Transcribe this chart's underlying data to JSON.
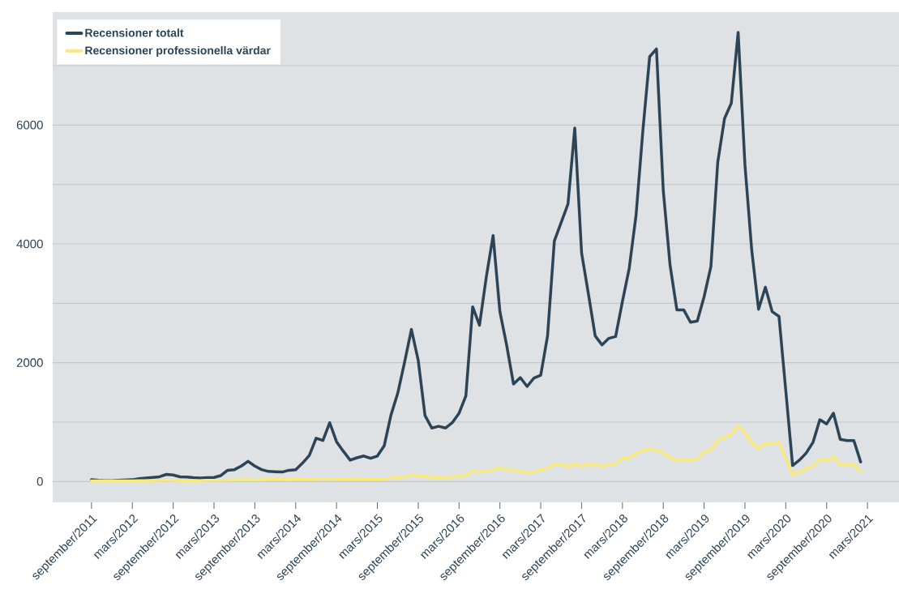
{
  "chart_data": {
    "type": "line",
    "x": [
      "2011-09",
      "2011-10",
      "2011-11",
      "2011-12",
      "2012-01",
      "2012-02",
      "2012-03",
      "2012-04",
      "2012-05",
      "2012-06",
      "2012-07",
      "2012-08",
      "2012-09",
      "2012-10",
      "2012-11",
      "2012-12",
      "2013-01",
      "2013-02",
      "2013-03",
      "2013-04",
      "2013-05",
      "2013-06",
      "2013-07",
      "2013-08",
      "2013-09",
      "2013-10",
      "2013-11",
      "2013-12",
      "2014-01",
      "2014-02",
      "2014-03",
      "2014-04",
      "2014-05",
      "2014-06",
      "2014-07",
      "2014-08",
      "2014-09",
      "2014-10",
      "2014-11",
      "2014-12",
      "2015-01",
      "2015-02",
      "2015-03",
      "2015-04",
      "2015-05",
      "2015-06",
      "2015-07",
      "2015-08",
      "2015-09",
      "2015-10",
      "2015-11",
      "2015-12",
      "2016-01",
      "2016-02",
      "2016-03",
      "2016-04",
      "2016-05",
      "2016-06",
      "2016-07",
      "2016-08",
      "2016-09",
      "2016-10",
      "2016-11",
      "2016-12",
      "2017-01",
      "2017-02",
      "2017-03",
      "2017-04",
      "2017-05",
      "2017-06",
      "2017-07",
      "2017-08",
      "2017-09",
      "2017-10",
      "2017-11",
      "2017-12",
      "2018-01",
      "2018-02",
      "2018-03",
      "2018-04",
      "2018-05",
      "2018-06",
      "2018-07",
      "2018-08",
      "2018-09",
      "2018-10",
      "2018-11",
      "2018-12",
      "2019-01",
      "2019-02",
      "2019-03",
      "2019-04",
      "2019-05",
      "2019-06",
      "2019-07",
      "2019-08",
      "2019-09",
      "2019-10",
      "2019-11",
      "2019-12",
      "2020-01",
      "2020-02",
      "2020-03",
      "2020-04",
      "2020-05",
      "2020-06",
      "2020-07",
      "2020-08",
      "2020-09",
      "2020-10",
      "2020-11",
      "2020-12",
      "2021-01",
      "2021-02"
    ],
    "series": [
      {
        "name": "Recensioner totalt",
        "color": "#2d4456",
        "values": [
          30,
          20,
          15,
          15,
          20,
          25,
          30,
          50,
          60,
          70,
          80,
          120,
          110,
          80,
          75,
          65,
          60,
          65,
          70,
          100,
          190,
          200,
          260,
          340,
          260,
          200,
          170,
          165,
          160,
          190,
          200,
          310,
          440,
          730,
          690,
          990,
          670,
          510,
          360,
          400,
          430,
          390,
          430,
          600,
          1120,
          1490,
          2010,
          2560,
          2040,
          1110,
          900,
          930,
          900,
          990,
          1150,
          1440,
          2940,
          2630,
          3440,
          4140,
          2860,
          2290,
          1640,
          1750,
          1600,
          1740,
          1790,
          2450,
          4050,
          4360,
          4670,
          5950,
          3850,
          3160,
          2450,
          2300,
          2410,
          2440,
          3030,
          3590,
          4480,
          5900,
          7150,
          7280,
          4900,
          3640,
          2890,
          2890,
          2680,
          2700,
          3110,
          3620,
          5370,
          6110,
          6370,
          7560,
          5330,
          3890,
          2900,
          3270,
          2860,
          2780,
          1530,
          270,
          360,
          480,
          660,
          1040,
          970,
          1150,
          710,
          690,
          690,
          330
        ]
      },
      {
        "name": "Recensioner professionella värdar",
        "color": "#f8e97a",
        "values": [
          10,
          10,
          10,
          10,
          10,
          10,
          10,
          15,
          15,
          15,
          20,
          20,
          20,
          15,
          15,
          15,
          15,
          20,
          20,
          20,
          25,
          25,
          30,
          30,
          25,
          30,
          35,
          35,
          35,
          30,
          35,
          35,
          40,
          45,
          50,
          50,
          45,
          40,
          30,
          35,
          40,
          40,
          40,
          45,
          55,
          65,
          80,
          110,
          100,
          90,
          70,
          70,
          70,
          75,
          90,
          110,
          170,
          160,
          170,
          200,
          230,
          200,
          190,
          170,
          150,
          160,
          200,
          220,
          290,
          290,
          250,
          290,
          260,
          290,
          290,
          260,
          280,
          300,
          400,
          400,
          480,
          520,
          550,
          520,
          480,
          400,
          360,
          360,
          370,
          380,
          510,
          530,
          690,
          740,
          800,
          940,
          830,
          660,
          560,
          640,
          640,
          660,
          380,
          120,
          160,
          220,
          260,
          380,
          350,
          420,
          270,
          290,
          290,
          160
        ]
      }
    ],
    "xlim": [
      "2011-03-10",
      "2021-07-20"
    ],
    "xticks": [
      {
        "value": "2011-09",
        "label": "september/2011"
      },
      {
        "value": "2012-03",
        "label": "mars/2012"
      },
      {
        "value": "2012-09",
        "label": "september/2012"
      },
      {
        "value": "2013-03",
        "label": "mars/2013"
      },
      {
        "value": "2013-09",
        "label": "september/2013"
      },
      {
        "value": "2014-03",
        "label": "mars/2014"
      },
      {
        "value": "2014-09",
        "label": "september/2014"
      },
      {
        "value": "2015-03",
        "label": "mars/2015"
      },
      {
        "value": "2015-09",
        "label": "september/2015"
      },
      {
        "value": "2016-03",
        "label": "mars/2016"
      },
      {
        "value": "2016-09",
        "label": "september/2016"
      },
      {
        "value": "2017-03",
        "label": "mars/2017"
      },
      {
        "value": "2017-09",
        "label": "september/2017"
      },
      {
        "value": "2018-03",
        "label": "mars/2018"
      },
      {
        "value": "2018-09",
        "label": "september/2018"
      },
      {
        "value": "2019-03",
        "label": "mars/2019"
      },
      {
        "value": "2019-09",
        "label": "september/2019"
      },
      {
        "value": "2020-03",
        "label": "mars/2020"
      },
      {
        "value": "2020-09",
        "label": "september/2020"
      },
      {
        "value": "2021-03",
        "label": "mars/2021"
      }
    ],
    "ylim": [
      -350,
      7900
    ],
    "yticks": [
      0,
      {
        "value": 1000,
        "label": null
      },
      2000,
      {
        "value": 3000,
        "label": null
      },
      4000,
      {
        "value": 5000,
        "label": null
      },
      6000,
      {
        "value": 7000,
        "label": null
      }
    ],
    "grid": "y",
    "legend": "top left"
  }
}
